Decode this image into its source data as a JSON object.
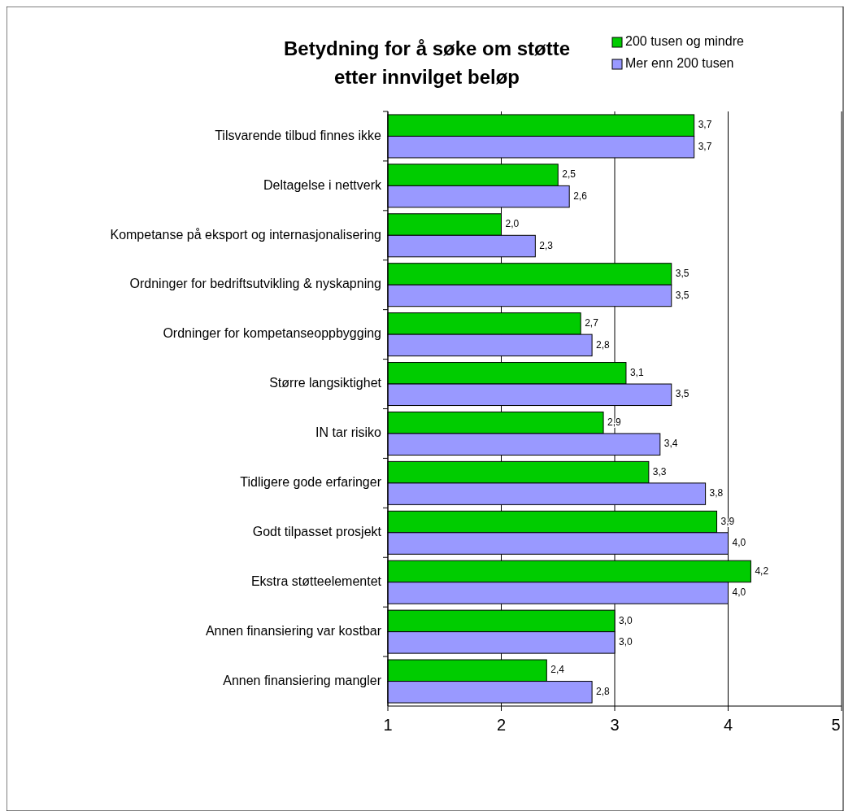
{
  "chart_data": {
    "type": "bar",
    "orientation": "horizontal",
    "title": "Betydning for å søke om støtte\netter innvilget beløp",
    "categories": [
      "Tilsvarende tilbud finnes ikke",
      "Deltagelse i nettverk ",
      "Kompetanse på eksport og internasjonalisering",
      "Ordninger for bedriftsutvikling & nyskapning",
      "Ordninger for kompetanseoppbygging",
      "Større langsiktighet",
      "IN tar risiko",
      "Tidligere gode erfaringer ",
      "Godt tilpasset prosjekt",
      "Ekstra støtteelementet",
      "Annen finansiering var kostbar",
      "Annen finansiering mangler"
    ],
    "series": [
      {
        "name": "200 tusen og mindre",
        "color": "#00cc00",
        "values": [
          3.7,
          2.5,
          2.0,
          3.5,
          2.7,
          3.1,
          2.9,
          3.3,
          3.9,
          4.2,
          3.0,
          2.4
        ],
        "value_labels": [
          "3,7",
          "2,5",
          "2,0",
          "3,5",
          "2,7",
          "3,1",
          "2,9",
          "3,3",
          "3,9",
          "4,2",
          "3,0",
          "2,4"
        ]
      },
      {
        "name": "Mer enn 200 tusen",
        "color": "#9999ff",
        "values": [
          3.7,
          2.6,
          2.3,
          3.5,
          2.8,
          3.5,
          3.4,
          3.8,
          4.0,
          4.0,
          3.0,
          2.8
        ],
        "value_labels": [
          "3,7",
          "2,6",
          "2,3",
          "3,5",
          "2,8",
          "3,5",
          "3,4",
          "3,8",
          "4,0",
          "4,0",
          "3,0",
          "2,8"
        ]
      }
    ],
    "xlim": [
      1,
      5
    ],
    "xticks": [
      1,
      2,
      3,
      4,
      5
    ],
    "grid": "x",
    "legend": "top right"
  }
}
